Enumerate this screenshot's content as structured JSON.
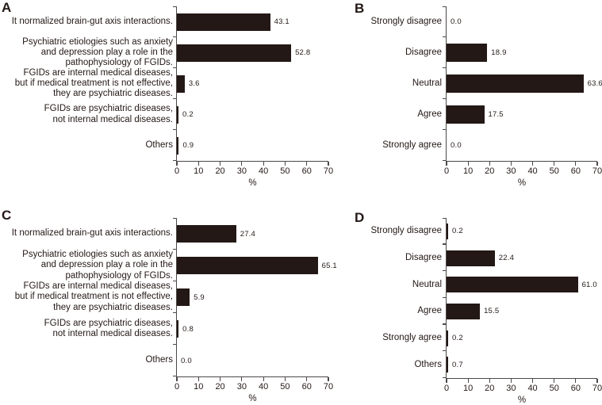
{
  "figure": {
    "background": "#ffffff",
    "bar_color": "#231815",
    "axis_color": "#4c4948",
    "text_color": "#231815",
    "panel_letters": [
      "A",
      "B",
      "C",
      "D"
    ]
  },
  "chart_data": [
    {
      "type": "bar",
      "orientation": "horizontal",
      "panel": "A",
      "categories": [
        "It normalized brain-gut axis interactions.",
        "Psychiatric etiologies such as anxiety and depression play a role in the pathophysiology of FGIDs.",
        "FGIDs are internal medical diseases, but if medical treatment is not effective, they are psychiatric diseases.",
        "FGIDs are psychiatric diseases, not internal medical diseases.",
        "Others"
      ],
      "category_lines": [
        [
          "It normalized brain-gut axis interactions."
        ],
        [
          "Psychiatric etiologies such as anxiety",
          "and depression play a role in the",
          "pathophysiology of FGIDs."
        ],
        [
          "FGIDs are internal medical diseases,",
          "but if medical treatment is not effective,",
          "they are psychiatric diseases."
        ],
        [
          "FGIDs are psychiatric diseases,",
          "not internal medical diseases."
        ],
        [
          "Others"
        ]
      ],
      "values": [
        43.1,
        52.8,
        3.6,
        0.2,
        0.9
      ],
      "xlabel": "%",
      "xlim": [
        0,
        70
      ],
      "xticks": [
        0,
        10,
        20,
        30,
        40,
        50,
        60,
        70
      ],
      "grid": false,
      "legend": null
    },
    {
      "type": "bar",
      "orientation": "horizontal",
      "panel": "B",
      "categories": [
        "Strongly disagree",
        "Disagree",
        "Neutral",
        "Agree",
        "Strongly agree"
      ],
      "category_lines": [
        [
          "Strongly disagree"
        ],
        [
          "Disagree"
        ],
        [
          "Neutral"
        ],
        [
          "Agree"
        ],
        [
          "Strongly agree"
        ]
      ],
      "values": [
        0.0,
        18.9,
        63.6,
        17.5,
        0.0
      ],
      "xlabel": "%",
      "xlim": [
        0,
        70
      ],
      "xticks": [
        0,
        10,
        20,
        30,
        40,
        50,
        60,
        70
      ],
      "grid": false,
      "legend": null
    },
    {
      "type": "bar",
      "orientation": "horizontal",
      "panel": "C",
      "categories": [
        "It normalized brain-gut axis interactions.",
        "Psychiatric etiologies such as anxiety and depression play a role in the pathophysiology of FGIDs.",
        "FGIDs are internal medical diseases, but if medical treatment is not effective, they are psychiatric diseases.",
        "FGIDs are psychiatric diseases, not internal medical diseases.",
        "Others"
      ],
      "category_lines": [
        [
          "It normalized brain-gut axis interactions."
        ],
        [
          "Psychiatric etiologies such as anxiety",
          "and depression play a role in the",
          "pathophysiology of FGIDs."
        ],
        [
          "FGIDs are internal medical diseases,",
          "but if medical treatment is not effective,",
          "they are psychiatric diseases."
        ],
        [
          "FGIDs are psychiatric diseases,",
          "not internal medical diseases."
        ],
        [
          "Others"
        ]
      ],
      "values": [
        27.4,
        65.1,
        5.9,
        0.8,
        0.0
      ],
      "xlabel": "%",
      "xlim": [
        0,
        70
      ],
      "xticks": [
        0,
        10,
        20,
        30,
        40,
        50,
        60,
        70
      ],
      "grid": false,
      "legend": null
    },
    {
      "type": "bar",
      "orientation": "horizontal",
      "panel": "D",
      "categories": [
        "Strongly disagree",
        "Disagree",
        "Neutral",
        "Agree",
        "Strongly agree",
        "Others"
      ],
      "category_lines": [
        [
          "Strongly disagree"
        ],
        [
          "Disagree"
        ],
        [
          "Neutral"
        ],
        [
          "Agree"
        ],
        [
          "Strongly agree"
        ],
        [
          "Others"
        ]
      ],
      "values": [
        0.2,
        22.4,
        61.0,
        15.5,
        0.2,
        0.7
      ],
      "xlabel": "%",
      "xlim": [
        0,
        70
      ],
      "xticks": [
        0,
        10,
        20,
        30,
        40,
        50,
        60,
        70
      ],
      "grid": false,
      "legend": null
    }
  ]
}
